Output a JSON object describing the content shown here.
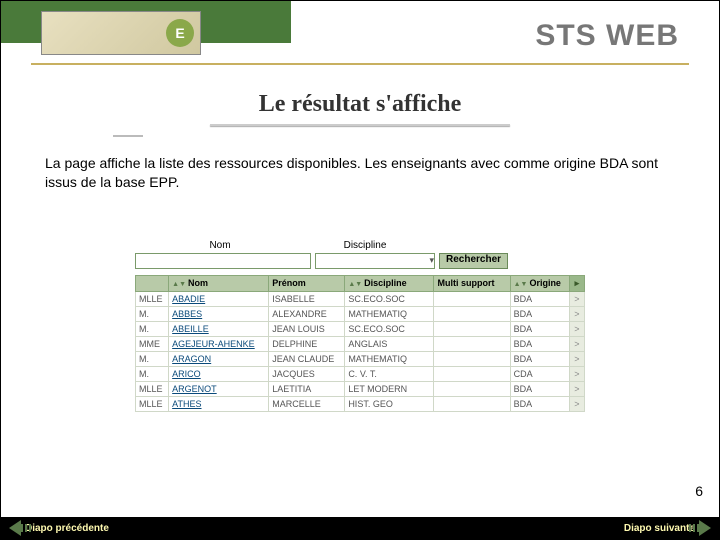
{
  "header": {
    "brand": "STS WEB",
    "logo_letter": "E"
  },
  "title": "Le résultat s'affiche",
  "description": "La page affiche la liste des ressources disponibles. Les enseignants avec comme origine BDA sont issus de la base EPP.",
  "search": {
    "nom_label": "Nom",
    "discipline_label": "Discipline",
    "dropdown_arrow": "▾",
    "button": "Rechercher"
  },
  "table": {
    "columns": {
      "civ": "",
      "nom": "Nom",
      "prenom": "Prénom",
      "discipline": "Discipline",
      "multi": "Multi support",
      "origine": "Origine",
      "action": "▸"
    },
    "sort_icons": "▲▼",
    "rows": [
      {
        "civ": "MLLE",
        "nom": "ABADIE",
        "prenom": "ISABELLE",
        "disc": "SC.ECO.SOC",
        "multi": "",
        "orig": "BDA",
        "act": ">"
      },
      {
        "civ": "M.",
        "nom": "ABBES",
        "prenom": "ALEXANDRE",
        "disc": "MATHEMATIQ",
        "multi": "",
        "orig": "BDA",
        "act": ">"
      },
      {
        "civ": "M.",
        "nom": "ABEILLE",
        "prenom": "JEAN LOUIS",
        "disc": "SC.ECO.SOC",
        "multi": "",
        "orig": "BDA",
        "act": ">"
      },
      {
        "civ": "MME",
        "nom": "AGEJEUR-AHENKE",
        "prenom": "DELPHINE",
        "disc": "ANGLAIS",
        "multi": "",
        "orig": "BDA",
        "act": ">"
      },
      {
        "civ": "M.",
        "nom": "ARAGON",
        "prenom": "JEAN CLAUDE",
        "disc": "MATHEMATIQ",
        "multi": "",
        "orig": "BDA",
        "act": ">"
      },
      {
        "civ": "M.",
        "nom": "ARICO",
        "prenom": "JACQUES",
        "disc": "C. V. T.",
        "multi": "",
        "orig": "CDA",
        "act": ">"
      },
      {
        "civ": "MLLE",
        "nom": "ARGENOT",
        "prenom": "LAETITIA",
        "disc": "LET MODERN",
        "multi": "",
        "orig": "BDA",
        "act": ">"
      },
      {
        "civ": "MLLE",
        "nom": "ATHES",
        "prenom": "MARCELLE",
        "disc": "HIST. GEO",
        "multi": "",
        "orig": "BDA",
        "act": ">"
      }
    ]
  },
  "page_number": "6",
  "nav": {
    "prev": "Diapo précédente",
    "next": "Diapo suivante"
  },
  "colors": {
    "accent": "#4a7a3a",
    "table_header": "#b8caa8"
  }
}
